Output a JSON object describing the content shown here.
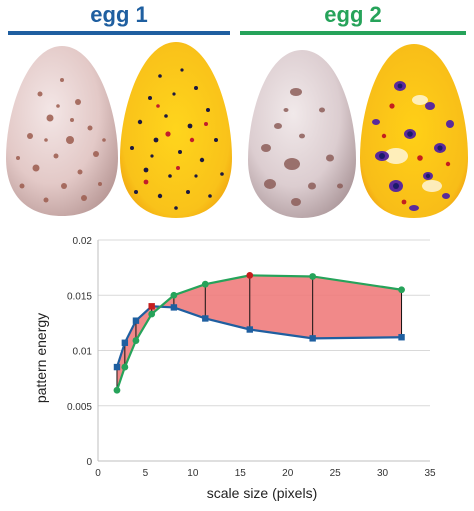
{
  "header": {
    "egg1_label": "egg 1",
    "egg2_label": "egg 2"
  },
  "colors": {
    "egg1": "#1f5fa0",
    "egg2": "#26a35a",
    "highlight_fill": "#f07c7c",
    "max_point": "#c41e1e",
    "connector": "#111111"
  },
  "chart_data": {
    "type": "line",
    "title": "",
    "xlabel": "scale size (pixels)",
    "ylabel": "pattern energy",
    "xlim": [
      0,
      35
    ],
    "ylim": [
      0,
      0.02
    ],
    "xticks": [
      "0",
      "5",
      "10",
      "15",
      "20",
      "25",
      "30",
      "35"
    ],
    "yticks": [
      "0",
      "0.005",
      "0.01",
      "0.015",
      "0.02"
    ],
    "grid": "horizontal",
    "legend": "none",
    "series": [
      {
        "color": "#1f5fa0",
        "x": [
          2,
          2.83,
          4,
          5.66,
          8,
          11.31,
          16,
          22.63,
          32
        ],
        "y": [
          0.0085,
          0.0107,
          0.0127,
          0.014,
          0.0139,
          0.0129,
          0.0119,
          0.0111,
          0.0112
        ],
        "max_index": 3
      },
      {
        "color": "#26a35a",
        "x": [
          2,
          2.83,
          4,
          5.66,
          8,
          11.31,
          16,
          22.63,
          32
        ],
        "y": [
          0.0064,
          0.0085,
          0.0109,
          0.0133,
          0.015,
          0.016,
          0.0168,
          0.0167,
          0.0155
        ],
        "max_index": 6
      }
    ]
  }
}
